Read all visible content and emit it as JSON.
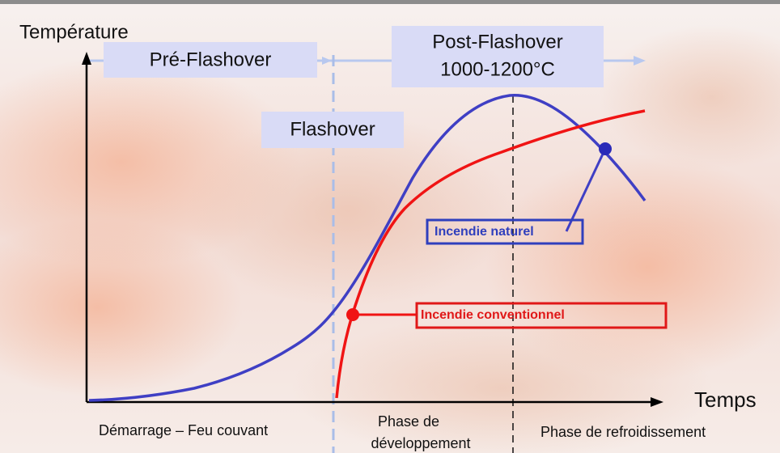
{
  "axes": {
    "y_label": "Température",
    "x_label": "Temps"
  },
  "phases": {
    "pre_flashover": "Pré-Flashover",
    "post_flashover": [
      "Post-Flashover",
      "1000-1200°C"
    ],
    "flashover": "Flashover"
  },
  "curves": {
    "natural": "Incendie naturel",
    "conventional": "Incendie conventionnel"
  },
  "x_phases": {
    "start": "Démarrage – Feu couvant",
    "development": [
      "Phase de",
      "développement"
    ],
    "cooling": "Phase de refroidissement"
  }
}
